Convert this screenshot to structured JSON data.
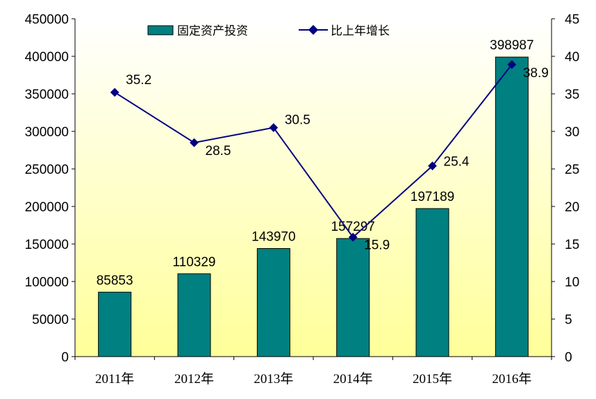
{
  "chart_data": {
    "type": "bar+line",
    "categories": [
      "2011年",
      "2012年",
      "2013年",
      "2014年",
      "2015年",
      "2016年"
    ],
    "series": [
      {
        "name": "固定资产投资",
        "type": "bar",
        "axis": "left",
        "values": [
          85853,
          110329,
          143970,
          157297,
          197189,
          398987
        ]
      },
      {
        "name": "比上年增长",
        "type": "line",
        "axis": "right",
        "values": [
          35.2,
          28.5,
          30.5,
          15.9,
          25.4,
          38.9
        ]
      }
    ],
    "y_left": {
      "min": 0,
      "max": 450000,
      "step": 50000
    },
    "y_right": {
      "min": 0,
      "max": 45,
      "step": 5
    },
    "legend_position": "top",
    "grid": false,
    "colors": {
      "bar": "#008080",
      "line": "#000080",
      "plot_bg_top": "#FFFFFF",
      "plot_bg_bottom": "#FFFF99"
    }
  }
}
